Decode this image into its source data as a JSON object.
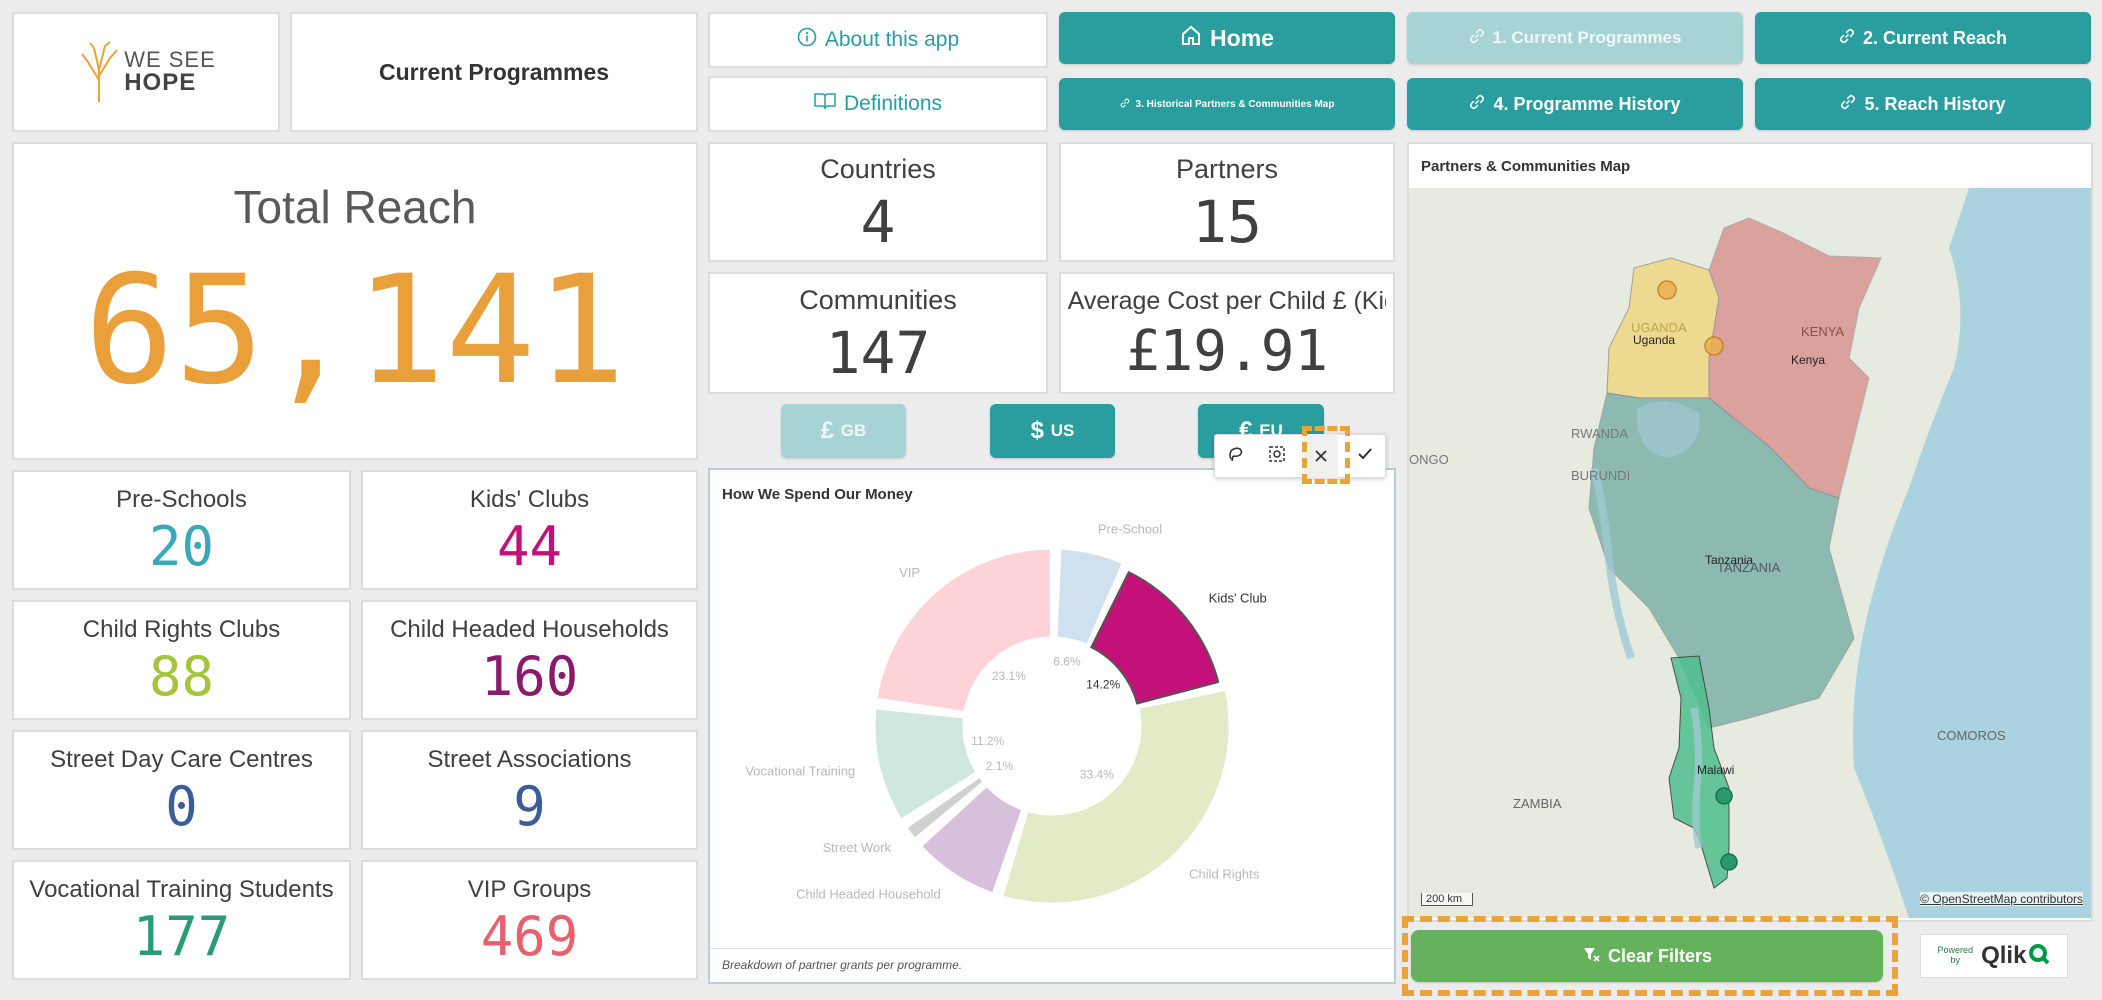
{
  "brand": {
    "logo_line1": "WE SEE",
    "logo_line2": "HOPE"
  },
  "header": {
    "title": "Current Programmes"
  },
  "nav": {
    "about": "About this app",
    "definitions": "Definitions",
    "home": "Home",
    "current_programmes": "1. Current Programmes",
    "current_reach": "2. Current Reach",
    "historical_map": "3. Historical Partners & Communities Map",
    "programme_history": "4. Programme History",
    "reach_history": "5. Reach History"
  },
  "total_reach": {
    "label": "Total Reach",
    "value": "65,141"
  },
  "kpis": {
    "countries": {
      "label": "Countries",
      "value": "4"
    },
    "partners": {
      "label": "Partners",
      "value": "15"
    },
    "communities": {
      "label": "Communities",
      "value": "147"
    },
    "avg_cost": {
      "label": "Average Cost per Child £ (Kids...",
      "value": "£19.91"
    }
  },
  "currency": {
    "gb_symbol": "£",
    "gb": "GB",
    "us_symbol": "$",
    "us": "US",
    "eu_symbol": "€",
    "eu": "EU"
  },
  "programmes": [
    {
      "label": "Pre-Schools",
      "value": "20",
      "color": "#3aa8b8"
    },
    {
      "label": "Kids' Clubs",
      "value": "44",
      "color": "#c4117a"
    },
    {
      "label": "Child Rights Clubs",
      "value": "88",
      "color": "#a4c43a"
    },
    {
      "label": "Child Headed Households",
      "value": "160",
      "color": "#8b1a6b"
    },
    {
      "label": "Street Day Care Centres",
      "value": "0",
      "color": "#3d5d9a"
    },
    {
      "label": "Street Associations",
      "value": "9",
      "color": "#3d5d9a"
    },
    {
      "label": "Vocational Training Students",
      "value": "177",
      "color": "#2a9a78"
    },
    {
      "label": "VIP Groups",
      "value": "469",
      "color": "#e8606e"
    }
  ],
  "spend_chart": {
    "title": "How We Spend Our Money",
    "footnote": "Breakdown of partner grants per programme.",
    "toolbar": {
      "lasso": "lasso-icon",
      "select": "select-icon",
      "cancel": "close-icon",
      "confirm": "check-icon"
    }
  },
  "chart_data": {
    "type": "pie",
    "title": "How We Spend Our Money",
    "categories": [
      "Pre-School",
      "Kids' Club",
      "Child Rights",
      "Child Headed Household",
      "Street Work",
      "Vocational Training",
      "VIP"
    ],
    "values": [
      6.6,
      14.2,
      33.4,
      8.6,
      2.1,
      11.2,
      23.1
    ],
    "percent_labels": [
      "6.6%",
      "14.2%",
      "33.4%",
      "",
      "2.1%",
      "11.2%",
      "23.1%"
    ],
    "selected": "Kids' Club",
    "colors": [
      "#cfe1ee",
      "#c4117a",
      "#e3ebc6",
      "#d6c0dc",
      "#d0d0d0",
      "#cfe7df",
      "#fdd3d8"
    ],
    "legend": "none"
  },
  "map": {
    "title": "Partners & Communities Map",
    "labels": {
      "uganda_caps": "UGANDA",
      "uganda": "Uganda",
      "kenya_caps": "KENYA",
      "kenya": "Kenya",
      "rwanda": "RWANDA",
      "burundi": "BURUNDI",
      "tanzania": "Tanzania",
      "tanzania_caps": "TANZANIA",
      "malawi": "Malawi",
      "zambia": "ZAMBIA",
      "comoros": "COMOROS",
      "congo": "ONGO"
    },
    "scale": "200 km",
    "attribution": "© OpenStreetMap contributors"
  },
  "footer": {
    "clear_filters": "Clear Filters",
    "powered": "Powered",
    "by": "by",
    "qlik": "Qlik"
  }
}
